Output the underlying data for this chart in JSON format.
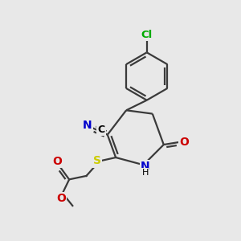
{
  "bg_color": "#e8e8e8",
  "bond_color": "#3a3a3a",
  "atom_colors": {
    "N": "#0000cc",
    "O": "#cc0000",
    "S": "#cccc00",
    "Cl": "#00aa00",
    "C": "#000000",
    "H": "#000000"
  },
  "line_width": 1.6,
  "font_size": 9.5,
  "figsize": [
    3.0,
    3.0
  ],
  "dpi": 100,
  "xlim": [
    0,
    10
  ],
  "ylim": [
    0,
    10
  ]
}
